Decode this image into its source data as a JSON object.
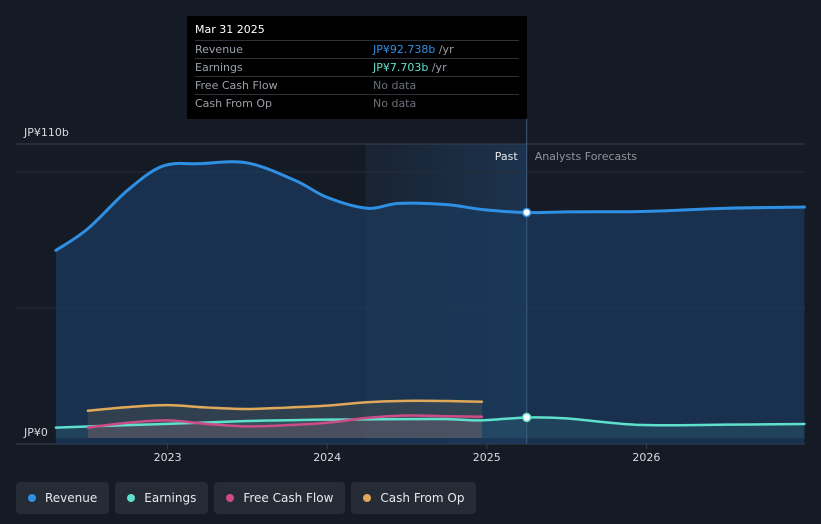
{
  "chart_data": {
    "type": "area",
    "y_axis_labels": {
      "top": "JP¥110b",
      "bottom": "JP¥0"
    },
    "ylim": [
      0,
      110
    ],
    "x_ticks": [
      "2023",
      "2024",
      "2025",
      "2026"
    ],
    "region_labels": {
      "past": "Past",
      "forecast": "Analysts Forecasts"
    },
    "series": [
      {
        "name": "Revenue",
        "key": "revenue",
        "color": "#2f8fe3",
        "points": [
          [
            2022.3,
            77
          ],
          [
            2022.5,
            86
          ],
          [
            2022.75,
            102
          ],
          [
            2022.97,
            112
          ],
          [
            2023.2,
            113
          ],
          [
            2023.5,
            113.3
          ],
          [
            2023.8,
            106
          ],
          [
            2024.0,
            99
          ],
          [
            2024.25,
            94.5
          ],
          [
            2024.45,
            96.5
          ],
          [
            2024.75,
            96
          ],
          [
            2024.97,
            94
          ],
          [
            2025.25,
            92.7
          ],
          [
            2025.5,
            93
          ],
          [
            2026.0,
            93.2
          ],
          [
            2026.5,
            94.5
          ],
          [
            2026.99,
            95
          ]
        ]
      },
      {
        "name": "Earnings",
        "key": "earnings",
        "color": "#5fe0cc",
        "points": [
          [
            2022.3,
            3.5
          ],
          [
            2022.75,
            4.5
          ],
          [
            2023.2,
            5.5
          ],
          [
            2023.5,
            6.2
          ],
          [
            2023.8,
            6.6
          ],
          [
            2024.0,
            6.8
          ],
          [
            2024.25,
            6.9
          ],
          [
            2024.5,
            7.0
          ],
          [
            2024.75,
            7.0
          ],
          [
            2024.97,
            6.5
          ],
          [
            2025.25,
            7.7
          ],
          [
            2025.5,
            7.3
          ],
          [
            2025.95,
            4.6
          ],
          [
            2026.5,
            4.7
          ],
          [
            2026.99,
            5.0
          ]
        ]
      },
      {
        "name": "Free Cash Flow",
        "key": "fcf",
        "color": "#cc4d85",
        "points": [
          [
            2022.5,
            3.5
          ],
          [
            2022.75,
            5.5
          ],
          [
            2023.0,
            6.5
          ],
          [
            2023.25,
            5.0
          ],
          [
            2023.5,
            4.0
          ],
          [
            2023.75,
            4.5
          ],
          [
            2024.0,
            5.5
          ],
          [
            2024.25,
            7.5
          ],
          [
            2024.5,
            8.5
          ],
          [
            2024.75,
            8.2
          ],
          [
            2024.97,
            8.0
          ]
        ]
      },
      {
        "name": "Cash From Op",
        "key": "cfo",
        "color": "#e0a95a",
        "points": [
          [
            2022.5,
            10.5
          ],
          [
            2022.75,
            12
          ],
          [
            2023.0,
            12.8
          ],
          [
            2023.25,
            11.8
          ],
          [
            2023.5,
            11.2
          ],
          [
            2023.75,
            11.8
          ],
          [
            2024.0,
            12.6
          ],
          [
            2024.25,
            14
          ],
          [
            2024.5,
            14.6
          ],
          [
            2024.75,
            14.5
          ],
          [
            2024.97,
            14.2
          ]
        ]
      }
    ],
    "highlight_x": 2025.25,
    "highlight": {
      "revenue": 92.738,
      "earnings": 7.703
    }
  },
  "tooltip": {
    "date": "Mar 31 2025",
    "rows": [
      {
        "label": "Revenue",
        "value": "JP¥92.738b",
        "unit": " /yr",
        "color": "#2f8fe3"
      },
      {
        "label": "Earnings",
        "value": "JP¥7.703b",
        "unit": " /yr",
        "color": "#5fe0cc"
      },
      {
        "label": "Free Cash Flow",
        "value": "No data",
        "unit": "",
        "color": "#6b7079"
      },
      {
        "label": "Cash From Op",
        "value": "No data",
        "unit": "",
        "color": "#6b7079"
      }
    ]
  },
  "legend": [
    {
      "label": "Revenue",
      "color": "#2f8fe3"
    },
    {
      "label": "Earnings",
      "color": "#5fe0cc"
    },
    {
      "label": "Free Cash Flow",
      "color": "#cc4d85"
    },
    {
      "label": "Cash From Op",
      "color": "#e0a95a"
    }
  ]
}
